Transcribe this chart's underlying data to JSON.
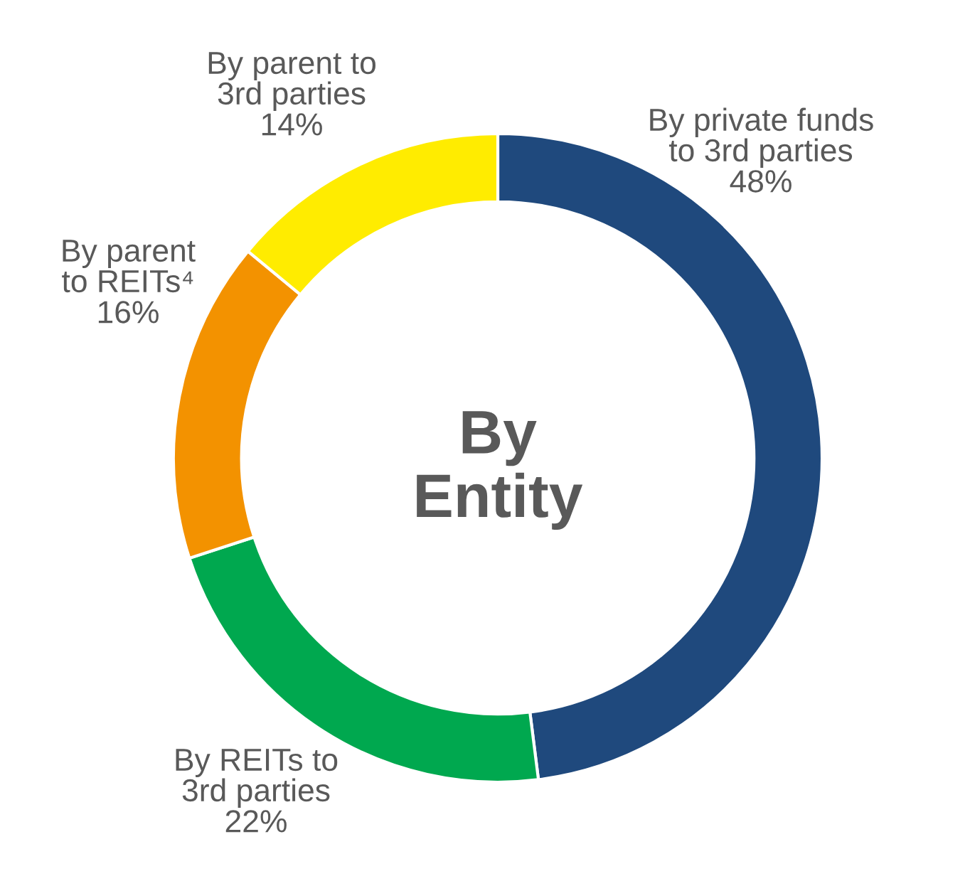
{
  "chart_data": {
    "type": "donut",
    "title": "By\nEntity",
    "categories": [
      "By private funds\nto 3rd parties",
      "By REITs to\n3rd parties",
      "By parent\nto REITs⁴",
      "By parent to\n3rd parties"
    ],
    "values": [
      48,
      22,
      16,
      14
    ],
    "value_labels": [
      "48%",
      "22%",
      "16%",
      "14%"
    ],
    "colors": [
      "#1f497d",
      "#00a84f",
      "#f39200",
      "#ffec00"
    ],
    "legend": false
  }
}
